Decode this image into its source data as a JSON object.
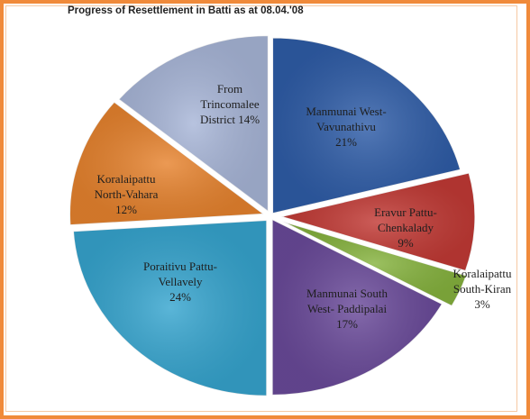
{
  "chart_data": {
    "type": "pie",
    "title": "Progress of Resettlement in Batti as at 08.04.'08",
    "slices": [
      {
        "lines": [
          "Manmunai West-",
          "Vavunathivu",
          "21%"
        ],
        "value": 21,
        "color": "#2f5da8"
      },
      {
        "lines": [
          "Eravur Pattu-",
          "Chenkalady",
          "9%"
        ],
        "value": 9,
        "color": "#c23a35"
      },
      {
        "lines": [
          "Koralaipattu",
          "South-Kiran",
          "3%"
        ],
        "value": 3,
        "color": "#86b33e"
      },
      {
        "lines": [
          "Manmunai South",
          "West- Paddipalai",
          "17%"
        ],
        "value": 17,
        "color": "#6a4a9a"
      },
      {
        "lines": [
          "Poraitivu Pattu-",
          "Vellavely",
          "24%"
        ],
        "value": 24,
        "color": "#36a5cf"
      },
      {
        "lines": [
          "Koralaipattu",
          "North-Vahara",
          "12%"
        ],
        "value": 12,
        "color": "#e7832e"
      },
      {
        "lines": [
          "From",
          "Trincomalee",
          "District 14%"
        ],
        "value": 14,
        "color": "#a8b6d8"
      }
    ]
  }
}
